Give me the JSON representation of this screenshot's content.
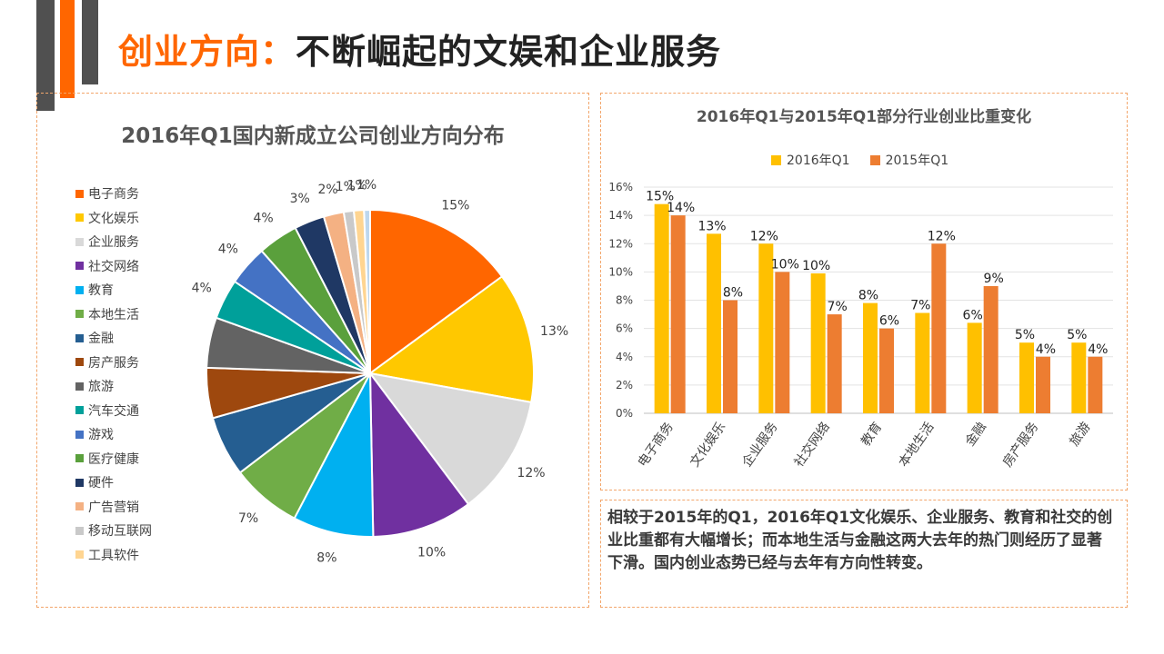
{
  "header": {
    "title_accent": "创业方向：",
    "title_main": "不断崛起的文娱和企业服务"
  },
  "colors": {
    "orange_accent": "#ff6600",
    "dark_bar": "#505050",
    "panel_border": "#f2a66b",
    "series_2016": "#ffc000",
    "series_2015": "#ed7d31"
  },
  "chart_data": [
    {
      "type": "pie",
      "title": "2016年Q1国内新成立公司创业方向分布",
      "legend_position": "left",
      "slices": [
        {
          "label": "电子商务",
          "value": 15,
          "display": "15%",
          "color": "#ff6600"
        },
        {
          "label": "文化娱乐",
          "value": 13,
          "display": "13%",
          "color": "#ffc800"
        },
        {
          "label": "企业服务",
          "value": 12,
          "display": "12%",
          "color": "#d9d9d9"
        },
        {
          "label": "社交网络",
          "value": 10,
          "display": "10%",
          "color": "#7030a0"
        },
        {
          "label": "教育",
          "value": 8,
          "display": "8%",
          "color": "#00b0f0"
        },
        {
          "label": "本地生活",
          "value": 7,
          "display": "7%",
          "color": "#70ad47"
        },
        {
          "label": "金融",
          "value": 6,
          "display": "",
          "color": "#255e91"
        },
        {
          "label": "房产服务",
          "value": 5,
          "display": "",
          "color": "#9e480e"
        },
        {
          "label": "旅游",
          "value": 5,
          "display": "",
          "color": "#636363"
        },
        {
          "label": "汽车交通",
          "value": 4,
          "display": "4%",
          "color": "#00a09a"
        },
        {
          "label": "游戏",
          "value": 4,
          "display": "4%",
          "color": "#4472c4"
        },
        {
          "label": "医疗健康",
          "value": 4,
          "display": "4%",
          "color": "#5aa03c"
        },
        {
          "label": "硬件",
          "value": 3,
          "display": "3%",
          "color": "#1f3864"
        },
        {
          "label": "广告营销",
          "value": 2,
          "display": "2%",
          "color": "#f4b183"
        },
        {
          "label": "移动互联网",
          "value": 1,
          "display": "1%",
          "color": "#c9c9c9"
        },
        {
          "label": "工具软件",
          "value": 1,
          "display": "1%",
          "color": "#ffd591"
        },
        {
          "label": "",
          "value": 0.6,
          "display": "1%",
          "color": "#bdd7ee"
        }
      ]
    },
    {
      "type": "bar",
      "title": "2016年Q1与2015年Q1部分行业创业比重变化",
      "categories": [
        "电子商务",
        "文化娱乐",
        "企业服务",
        "社交网络",
        "教育",
        "本地生活",
        "金融",
        "房产服务",
        "旅游"
      ],
      "series": [
        {
          "name": "2016年Q1",
          "values": [
            14.8,
            12.7,
            12.0,
            9.9,
            7.8,
            7.1,
            6.4,
            5.0,
            5.0
          ],
          "labels": [
            "15%",
            "13%",
            "12%",
            "10%",
            "8%",
            "7%",
            "6%",
            "5%",
            "5%"
          ],
          "color": "#ffc000"
        },
        {
          "name": "2015年Q1",
          "values": [
            14.0,
            8.0,
            10.0,
            7.0,
            6.0,
            12.0,
            9.0,
            4.0,
            4.0
          ],
          "labels": [
            "14%",
            "8%",
            "10%",
            "7%",
            "6%",
            "12%",
            "9%",
            "4%",
            "4%"
          ],
          "color": "#ed7d31"
        }
      ],
      "y_ticks": [
        "0%",
        "2%",
        "4%",
        "6%",
        "8%",
        "10%",
        "12%",
        "14%",
        "16%"
      ],
      "ylim": [
        0,
        16
      ],
      "grid": true,
      "legend_position": "top"
    }
  ],
  "note": {
    "text": "相较于2015年的Q1，2016年Q1文化娱乐、企业服务、教育和社交的创业比重都有大幅增长；而本地生活与金融这两大去年的热门则经历了显著下滑。国内创业态势已经与去年有方向性转变。"
  }
}
